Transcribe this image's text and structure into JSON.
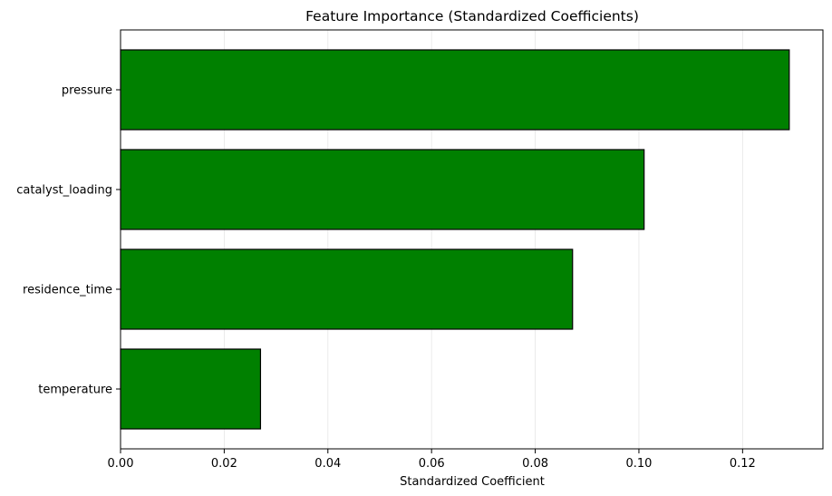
{
  "chart_data": {
    "type": "bar",
    "orientation": "horizontal",
    "title": "Feature Importance (Standardized Coefficients)",
    "xlabel": "Standardized Coefficient",
    "ylabel": "",
    "categories": [
      "temperature",
      "residence_time",
      "catalyst_loading",
      "pressure"
    ],
    "values": [
      0.027,
      0.0872,
      0.101,
      0.129
    ],
    "xlim": [
      0,
      0.1355
    ],
    "xticks": [
      0.0,
      0.02,
      0.04,
      0.06,
      0.08,
      0.1,
      0.12
    ],
    "xtick_labels": [
      "0.00",
      "0.02",
      "0.04",
      "0.06",
      "0.08",
      "0.10",
      "0.12"
    ],
    "grid": "x-axis only",
    "legend": "none",
    "colors": {
      "bar": "#008000",
      "bar_edge": "#000000",
      "grid": "#e6e6e6"
    }
  }
}
